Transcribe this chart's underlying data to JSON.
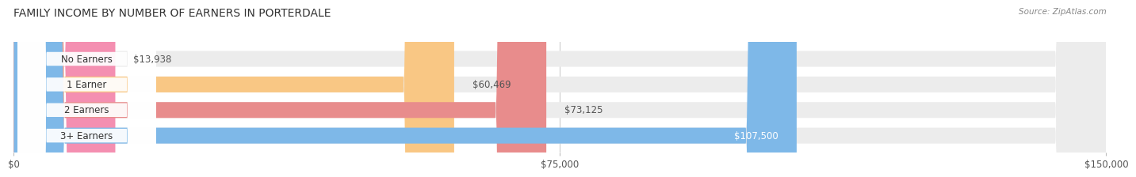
{
  "title": "FAMILY INCOME BY NUMBER OF EARNERS IN PORTERDALE",
  "source": "Source: ZipAtlas.com",
  "categories": [
    "No Earners",
    "1 Earner",
    "2 Earners",
    "3+ Earners"
  ],
  "values": [
    13938,
    60469,
    73125,
    107500
  ],
  "labels": [
    "$13,938",
    "$60,469",
    "$73,125",
    "$107,500"
  ],
  "bar_colors": [
    "#f48fb1",
    "#f9c784",
    "#e88c8c",
    "#7eb8e8"
  ],
  "label_colors": [
    "#555555",
    "#555555",
    "#555555",
    "#ffffff"
  ],
  "bar_bg_color": "#ececec",
  "background_color": "#ffffff",
  "xlim": [
    0,
    150000
  ],
  "xticks": [
    0,
    75000,
    150000
  ],
  "xtick_labels": [
    "$0",
    "$75,000",
    "$150,000"
  ],
  "title_fontsize": 10,
  "bar_height": 0.62
}
